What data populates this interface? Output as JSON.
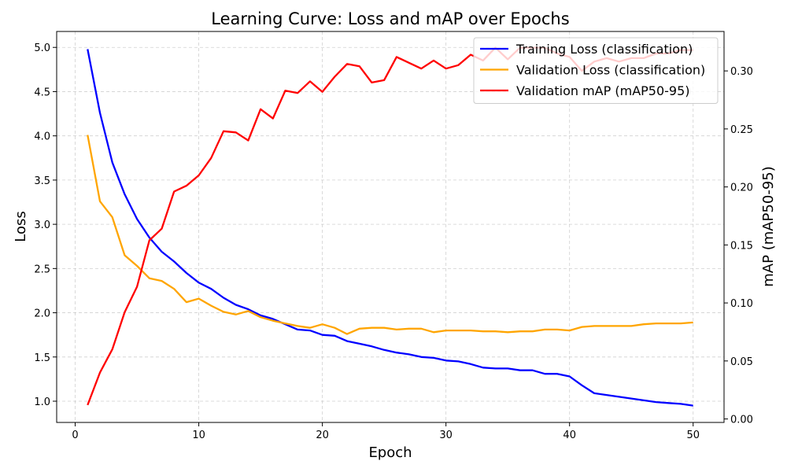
{
  "chart_data": {
    "type": "line",
    "title": "Learning Curve: Loss and mAP over Epochs",
    "xlabel": "Epoch",
    "ylabel": "Loss",
    "y2label": "mAP (mAP50-95)",
    "xlim": [
      -1.5,
      52.5
    ],
    "ylim": [
      0.76,
      5.18
    ],
    "y2lim": [
      -0.003,
      0.334
    ],
    "xticks": [
      0,
      10,
      20,
      30,
      40,
      50
    ],
    "yticks": [
      "1.0",
      "1.5",
      "2.0",
      "2.5",
      "3.0",
      "3.5",
      "4.0",
      "4.5",
      "5.0"
    ],
    "y2ticks": [
      "0.00",
      "0.05",
      "0.10",
      "0.15",
      "0.20",
      "0.25",
      "0.30"
    ],
    "grid": true,
    "legend_position": "top-right",
    "x": [
      1,
      2,
      3,
      4,
      5,
      6,
      7,
      8,
      9,
      10,
      11,
      12,
      13,
      14,
      15,
      16,
      17,
      18,
      19,
      20,
      21,
      22,
      23,
      24,
      25,
      26,
      27,
      28,
      29,
      30,
      31,
      32,
      33,
      34,
      35,
      36,
      37,
      38,
      39,
      40,
      41,
      42,
      43,
      44,
      45,
      46,
      47,
      48,
      49,
      50
    ],
    "series": [
      {
        "name": "Training Loss (classification)",
        "color": "#0000ff",
        "axis": "left",
        "values": [
          4.98,
          4.26,
          3.7,
          3.34,
          3.06,
          2.85,
          2.69,
          2.58,
          2.45,
          2.34,
          2.27,
          2.17,
          2.09,
          2.04,
          1.97,
          1.93,
          1.87,
          1.81,
          1.8,
          1.75,
          1.74,
          1.68,
          1.65,
          1.62,
          1.58,
          1.55,
          1.53,
          1.5,
          1.49,
          1.46,
          1.45,
          1.42,
          1.38,
          1.37,
          1.37,
          1.35,
          1.35,
          1.31,
          1.31,
          1.28,
          1.18,
          1.09,
          1.07,
          1.05,
          1.03,
          1.01,
          0.99,
          0.98,
          0.97,
          0.95
        ]
      },
      {
        "name": "Validation Loss (classification)",
        "color": "#ffa500",
        "axis": "left",
        "values": [
          4.01,
          3.26,
          3.08,
          2.65,
          2.53,
          2.39,
          2.36,
          2.27,
          2.12,
          2.16,
          2.08,
          2.01,
          1.98,
          2.02,
          1.95,
          1.91,
          1.88,
          1.85,
          1.83,
          1.87,
          1.83,
          1.76,
          1.82,
          1.83,
          1.83,
          1.81,
          1.82,
          1.82,
          1.78,
          1.8,
          1.8,
          1.8,
          1.79,
          1.79,
          1.78,
          1.79,
          1.79,
          1.81,
          1.81,
          1.8,
          1.84,
          1.85,
          1.85,
          1.85,
          1.85,
          1.87,
          1.88,
          1.88,
          1.88,
          1.89
        ]
      },
      {
        "name": "Validation mAP (mAP50-95)",
        "color": "#ff0000",
        "axis": "right",
        "values": [
          0.012,
          0.04,
          0.06,
          0.092,
          0.114,
          0.154,
          0.164,
          0.196,
          0.201,
          0.21,
          0.225,
          0.248,
          0.247,
          0.24,
          0.267,
          0.259,
          0.283,
          0.281,
          0.291,
          0.282,
          0.295,
          0.306,
          0.304,
          0.29,
          0.292,
          0.312,
          0.307,
          0.302,
          0.309,
          0.302,
          0.305,
          0.314,
          0.309,
          0.32,
          0.31,
          0.32,
          0.32,
          0.32,
          0.315,
          0.312,
          0.3,
          0.308,
          0.311,
          0.308,
          0.311,
          0.311,
          0.315,
          0.315,
          0.318,
          0.318
        ]
      }
    ]
  }
}
